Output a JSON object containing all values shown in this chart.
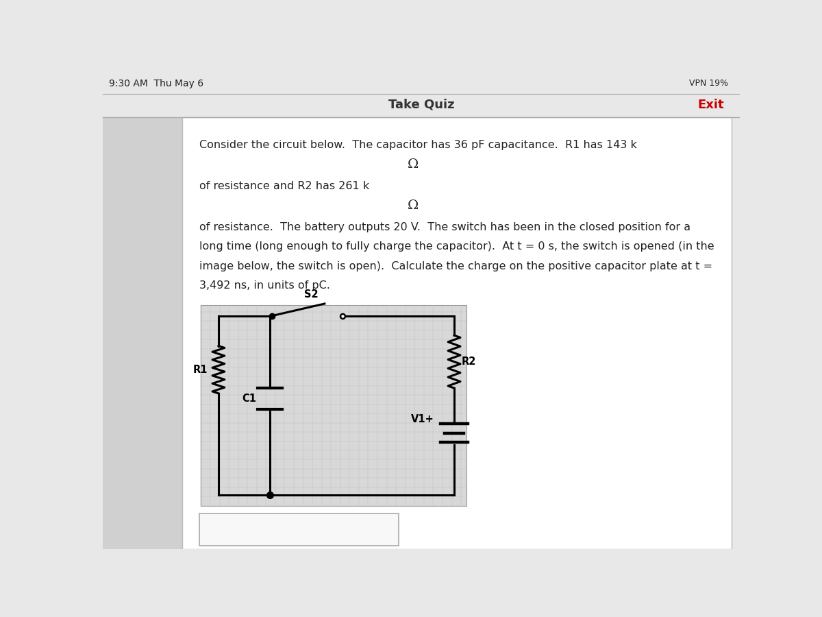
{
  "status_bar_text": "9:30 AM  Thu May 6",
  "nav_title": "Take Quiz",
  "nav_exit": "Exit",
  "question_text_line1": "Consider the circuit below.  The capacitor has 36 pF capacitance.  R1 has 143 k",
  "omega_symbol": "Ω",
  "question_text_line2": "of resistance and R2 has 261 k",
  "question_text_line3": "of resistance.  The battery outputs 20 V.  The switch has been in the closed position for a",
  "question_text_line4": "long time (long enough to fully charge the capacitor).  At t = 0 s, the switch is opened (in the",
  "question_text_line5": "image below, the switch is open).  Calculate the charge on the positive capacitor plate at t =",
  "question_text_line6": "3,492 ns, in units of pC.",
  "bg_color": "#e8e8e8",
  "card_bg": "#ffffff",
  "circuit_bg": "#d8d8d8",
  "text_color": "#222222",
  "nav_color": "#333333",
  "exit_color": "#cc0000",
  "circuit_line_color": "#000000",
  "grid_color": "#c0c0c0"
}
